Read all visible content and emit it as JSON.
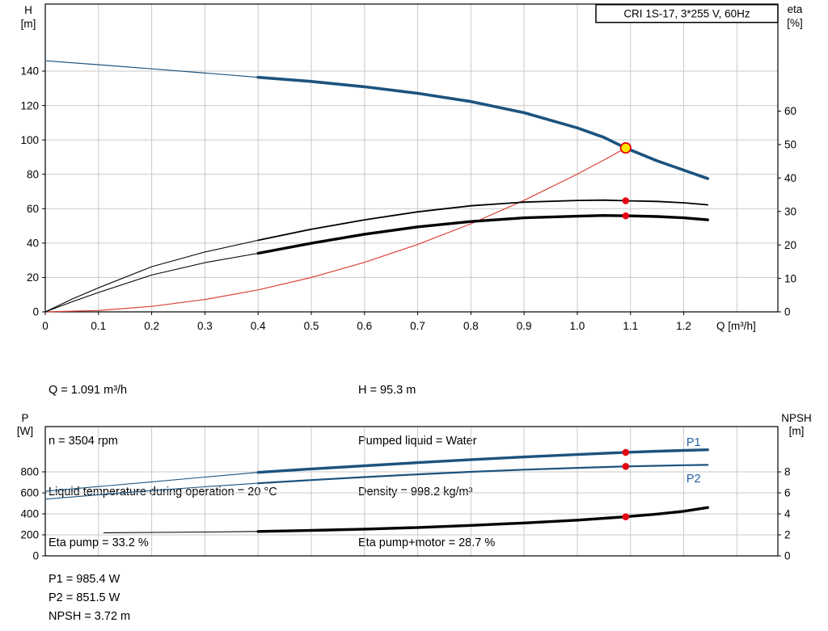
{
  "colors": {
    "curve_blue": "#1c537e",
    "curve_red": "#d94136",
    "curve_black": "#000000",
    "marker_red": "#e30613",
    "marker_yellow": "#ffe800",
    "grid": "#c9c9c9",
    "label_blue": "#2060a8"
  },
  "info_top": {
    "left": [
      "Q = 1.091 m³/h",
      "n = 3504 rpm",
      "Liquid temperature during operation = 20 °C",
      "Eta pump = 33.2 %"
    ],
    "right": [
      "H = 95.3 m",
      "Pumped liquid = Water",
      "Density = 998.2 kg/m³",
      "Eta pump+motor = 28.7 %"
    ]
  },
  "info_bottom": [
    "P1 = 985.4 W",
    "P2 = 851.5 W",
    "NPSH = 3.72 m"
  ],
  "chart_data": [
    {
      "type": "line",
      "name": "qh-eta-chart",
      "title": "CRI 1S-17, 3*255 V, 60Hz",
      "x_range": [
        0,
        1.377
      ],
      "x_ticks": [
        0,
        0.1,
        0.2,
        0.3,
        0.4,
        0.5,
        0.6,
        0.7,
        0.8,
        0.9,
        1.0,
        1.1,
        1.2
      ],
      "x_tick_labels": [
        "0",
        "0.1",
        "0.2",
        "0.3",
        "0.4",
        "0.5",
        "0.6",
        "0.7",
        "0.8",
        "0.9",
        "1.0",
        "1.1",
        "1.2"
      ],
      "x_grid": [
        0.1,
        0.2,
        0.3,
        0.4,
        0.5,
        0.6,
        0.7,
        0.8,
        0.9,
        1.0,
        1.1,
        1.2,
        1.3
      ],
      "xlabel": "Q [m³/h]",
      "left_axis": {
        "label": [
          "H",
          "[m]"
        ],
        "range": [
          0,
          179
        ],
        "ticks": [
          0,
          20,
          40,
          60,
          80,
          100,
          120,
          140
        ]
      },
      "right_axis": {
        "label": [
          "eta",
          "[%]"
        ],
        "range": [
          0,
          92
        ],
        "ticks": [
          0,
          10,
          20,
          30,
          40,
          50,
          60
        ]
      },
      "series": [
        {
          "name": "head-curve",
          "axis": "left",
          "color": "curve_blue",
          "split": 0.4,
          "width_thin": 1.2,
          "width": 3.6,
          "points": [
            [
              0,
              146
            ],
            [
              0.1,
              143.7
            ],
            [
              0.2,
              141.3
            ],
            [
              0.3,
              138.9
            ],
            [
              0.4,
              136.4
            ],
            [
              0.5,
              134.0
            ],
            [
              0.6,
              130.9
            ],
            [
              0.7,
              127.1
            ],
            [
              0.8,
              122.3
            ],
            [
              0.9,
              115.8
            ],
            [
              1.0,
              107.0
            ],
            [
              1.05,
              101.5
            ],
            [
              1.091,
              95.3
            ],
            [
              1.15,
              87.8
            ],
            [
              1.2,
              82.4
            ],
            [
              1.245,
              77.5
            ]
          ]
        },
        {
          "name": "system-curve",
          "axis": "left",
          "color": "curve_red",
          "width": 1.2,
          "points": [
            [
              0,
              0
            ],
            [
              0.1,
              0.8
            ],
            [
              0.2,
              3.2
            ],
            [
              0.3,
              7.2
            ],
            [
              0.4,
              12.8
            ],
            [
              0.5,
              20.0
            ],
            [
              0.6,
              28.8
            ],
            [
              0.7,
              39.2
            ],
            [
              0.8,
              51.2
            ],
            [
              0.9,
              64.9
            ],
            [
              1.0,
              80.1
            ],
            [
              1.05,
              88.3
            ],
            [
              1.091,
              95.3
            ]
          ]
        },
        {
          "name": "eta-pump-curve",
          "axis": "right",
          "color": "curve_black",
          "split": 0.4,
          "width_thin": 1.1,
          "width": 1.8,
          "points": [
            [
              0,
              0
            ],
            [
              0.05,
              3.8
            ],
            [
              0.1,
              7.2
            ],
            [
              0.2,
              13.5
            ],
            [
              0.3,
              17.9
            ],
            [
              0.4,
              21.4
            ],
            [
              0.5,
              24.7
            ],
            [
              0.6,
              27.5
            ],
            [
              0.7,
              29.9
            ],
            [
              0.8,
              31.7
            ],
            [
              0.9,
              32.8
            ],
            [
              1.0,
              33.3
            ],
            [
              1.05,
              33.4
            ],
            [
              1.091,
              33.2
            ],
            [
              1.15,
              33.0
            ],
            [
              1.2,
              32.6
            ],
            [
              1.245,
              32.0
            ]
          ]
        },
        {
          "name": "eta-pump-motor-curve",
          "axis": "right",
          "color": "curve_black",
          "split": 0.4,
          "width_thin": 1.1,
          "width": 3.4,
          "points": [
            [
              0,
              0
            ],
            [
              0.05,
              3.0
            ],
            [
              0.1,
              5.8
            ],
            [
              0.2,
              11.0
            ],
            [
              0.3,
              14.7
            ],
            [
              0.4,
              17.5
            ],
            [
              0.5,
              20.5
            ],
            [
              0.6,
              23.2
            ],
            [
              0.7,
              25.4
            ],
            [
              0.8,
              27.0
            ],
            [
              0.9,
              28.1
            ],
            [
              1.0,
              28.6
            ],
            [
              1.05,
              28.8
            ],
            [
              1.091,
              28.7
            ],
            [
              1.15,
              28.5
            ],
            [
              1.2,
              28.1
            ],
            [
              1.245,
              27.5
            ]
          ]
        }
      ],
      "markers": [
        {
          "kind": "duty",
          "axis": "left",
          "q": 1.091,
          "v": 95.3
        },
        {
          "kind": "dot",
          "axis": "right",
          "q": 1.091,
          "v": 33.2
        },
        {
          "kind": "dot",
          "axis": "right",
          "q": 1.091,
          "v": 28.7
        }
      ],
      "annotations": []
    },
    {
      "type": "line",
      "name": "power-npsh-chart",
      "x_range": [
        0,
        1.377
      ],
      "x_grid": [
        0.1,
        0.2,
        0.3,
        0.4,
        0.5,
        0.6,
        0.7,
        0.8,
        0.9,
        1.0,
        1.1,
        1.2,
        1.3
      ],
      "left_axis": {
        "label": [
          "P",
          "[W]"
        ],
        "range": [
          0,
          1231
        ],
        "ticks": [
          0,
          200,
          400,
          600,
          800
        ]
      },
      "right_axis": {
        "label": [
          "NPSH",
          "[m]"
        ],
        "range": [
          0,
          12.31
        ],
        "ticks": [
          0,
          2,
          4,
          6,
          8
        ]
      },
      "series": [
        {
          "name": "p1-curve",
          "axis": "left",
          "color": "curve_blue",
          "split": 0.4,
          "width_thin": 1.1,
          "width": 3.4,
          "points": [
            [
              0,
              615
            ],
            [
              0.1,
              660
            ],
            [
              0.2,
              705
            ],
            [
              0.3,
              750
            ],
            [
              0.4,
              795
            ],
            [
              0.5,
              828
            ],
            [
              0.6,
              858
            ],
            [
              0.7,
              888
            ],
            [
              0.8,
              916
            ],
            [
              0.9,
              942
            ],
            [
              1.0,
              965
            ],
            [
              1.091,
              985.4
            ],
            [
              1.15,
              996
            ],
            [
              1.2,
              1004
            ],
            [
              1.245,
              1010
            ]
          ]
        },
        {
          "name": "p2-curve",
          "axis": "left",
          "color": "curve_blue",
          "split": 0.4,
          "width_thin": 1.1,
          "width": 2.2,
          "points": [
            [
              0,
              540
            ],
            [
              0.1,
              582
            ],
            [
              0.2,
              622
            ],
            [
              0.3,
              658
            ],
            [
              0.4,
              692
            ],
            [
              0.5,
              722
            ],
            [
              0.6,
              750
            ],
            [
              0.7,
              776
            ],
            [
              0.8,
              800
            ],
            [
              0.9,
              821
            ],
            [
              1.0,
              838
            ],
            [
              1.091,
              851.5
            ],
            [
              1.15,
              858
            ],
            [
              1.2,
              863
            ],
            [
              1.245,
              866
            ]
          ]
        },
        {
          "name": "npsh-curve",
          "axis": "right",
          "color": "curve_black",
          "split": 0.4,
          "width_thin": 1.1,
          "width": 3.4,
          "points": [
            [
              0.11,
              2.2
            ],
            [
              0.2,
              2.23
            ],
            [
              0.3,
              2.27
            ],
            [
              0.4,
              2.32
            ],
            [
              0.5,
              2.42
            ],
            [
              0.6,
              2.55
            ],
            [
              0.7,
              2.7
            ],
            [
              0.8,
              2.9
            ],
            [
              0.9,
              3.13
            ],
            [
              1.0,
              3.4
            ],
            [
              1.091,
              3.72
            ],
            [
              1.15,
              3.98
            ],
            [
              1.2,
              4.25
            ],
            [
              1.245,
              4.6
            ]
          ]
        }
      ],
      "markers": [
        {
          "kind": "dot",
          "axis": "left",
          "q": 1.091,
          "v": 985.4
        },
        {
          "kind": "dot",
          "axis": "left",
          "q": 1.091,
          "v": 851.5
        },
        {
          "kind": "dot",
          "axis": "right",
          "q": 1.091,
          "v": 3.72
        }
      ],
      "annotations": [
        {
          "text": "P1",
          "x": 1.205,
          "y": 1048,
          "axis": "left"
        },
        {
          "text": "P2",
          "x": 1.205,
          "y": 700,
          "axis": "left"
        }
      ]
    }
  ]
}
